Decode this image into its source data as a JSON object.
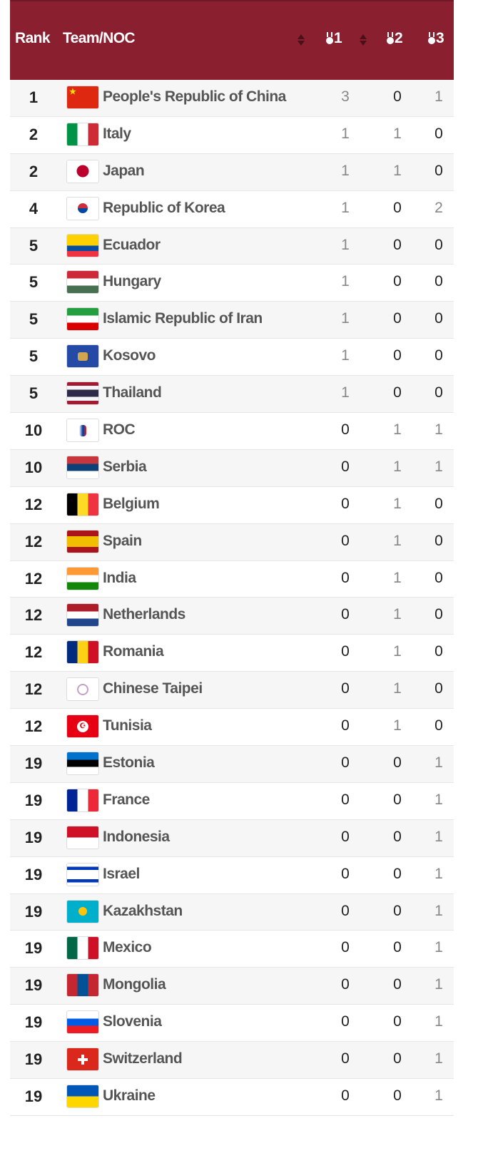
{
  "header": {
    "rank": "Rank",
    "team": "Team/NOC",
    "gold": "1",
    "silver": "2",
    "bronze": "3",
    "bg": "#8a1f30"
  },
  "rows": [
    {
      "rank": "1",
      "name": "People's Republic of China",
      "gold": 3,
      "silver": 0,
      "bronze": 1,
      "flag": {
        "dir": "h",
        "colors": [
          "#de2910"
        ],
        "emblem": "star"
      }
    },
    {
      "rank": "2",
      "name": "Italy",
      "gold": 1,
      "silver": 1,
      "bronze": 0,
      "flag": {
        "dir": "v",
        "colors": [
          "#009246",
          "#ffffff",
          "#ce2b37"
        ]
      }
    },
    {
      "rank": "2",
      "name": "Japan",
      "gold": 1,
      "silver": 1,
      "bronze": 0,
      "flag": {
        "dir": "h",
        "colors": [
          "#ffffff"
        ],
        "emblem": "red-disc"
      }
    },
    {
      "rank": "4",
      "name": "Republic of Korea",
      "gold": 1,
      "silver": 0,
      "bronze": 2,
      "flag": {
        "dir": "h",
        "colors": [
          "#ffffff"
        ],
        "emblem": "taegeuk"
      }
    },
    {
      "rank": "5",
      "name": "Ecuador",
      "gold": 1,
      "silver": 0,
      "bronze": 0,
      "flag": {
        "dir": "h",
        "colors": [
          "#ffd100",
          "#ffd100",
          "#034ea2",
          "#ef3340"
        ]
      }
    },
    {
      "rank": "5",
      "name": "Hungary",
      "gold": 1,
      "silver": 0,
      "bronze": 0,
      "flag": {
        "dir": "h",
        "colors": [
          "#ce2939",
          "#ffffff",
          "#477050"
        ]
      }
    },
    {
      "rank": "5",
      "name": "Islamic Republic of Iran",
      "gold": 1,
      "silver": 0,
      "bronze": 0,
      "flag": {
        "dir": "h",
        "colors": [
          "#239f40",
          "#ffffff",
          "#da0000"
        ]
      }
    },
    {
      "rank": "5",
      "name": "Kosovo",
      "gold": 1,
      "silver": 0,
      "bronze": 0,
      "flag": {
        "dir": "h",
        "colors": [
          "#244aa5"
        ],
        "emblem": "map"
      }
    },
    {
      "rank": "5",
      "name": "Thailand",
      "gold": 1,
      "silver": 0,
      "bronze": 0,
      "flag": {
        "dir": "h",
        "colors": [
          "#a51931",
          "#f4f5f8",
          "#2d2a4a",
          "#2d2a4a",
          "#f4f5f8",
          "#a51931"
        ]
      }
    },
    {
      "rank": "10",
      "name": "ROC",
      "gold": 0,
      "silver": 1,
      "bronze": 1,
      "flag": {
        "dir": "h",
        "colors": [
          "#ffffff"
        ],
        "emblem": "roc"
      }
    },
    {
      "rank": "10",
      "name": "Serbia",
      "gold": 0,
      "silver": 1,
      "bronze": 1,
      "flag": {
        "dir": "h",
        "colors": [
          "#c6363c",
          "#0c4076",
          "#ffffff"
        ]
      }
    },
    {
      "rank": "12",
      "name": "Belgium",
      "gold": 0,
      "silver": 1,
      "bronze": 0,
      "flag": {
        "dir": "v",
        "colors": [
          "#000000",
          "#fdda24",
          "#ef3340"
        ]
      }
    },
    {
      "rank": "12",
      "name": "Spain",
      "gold": 0,
      "silver": 1,
      "bronze": 0,
      "flag": {
        "dir": "h",
        "colors": [
          "#aa151b",
          "#f1bf00",
          "#f1bf00",
          "#aa151b"
        ]
      }
    },
    {
      "rank": "12",
      "name": "India",
      "gold": 0,
      "silver": 1,
      "bronze": 0,
      "flag": {
        "dir": "h",
        "colors": [
          "#ff9933",
          "#ffffff",
          "#138808"
        ]
      }
    },
    {
      "rank": "12",
      "name": "Netherlands",
      "gold": 0,
      "silver": 1,
      "bronze": 0,
      "flag": {
        "dir": "h",
        "colors": [
          "#ae1c28",
          "#ffffff",
          "#21468b"
        ]
      }
    },
    {
      "rank": "12",
      "name": "Romania",
      "gold": 0,
      "silver": 1,
      "bronze": 0,
      "flag": {
        "dir": "v",
        "colors": [
          "#002b7f",
          "#fcd116",
          "#ce1126"
        ]
      }
    },
    {
      "rank": "12",
      "name": "Chinese Taipei",
      "gold": 0,
      "silver": 1,
      "bronze": 0,
      "flag": {
        "dir": "h",
        "colors": [
          "#ffffff"
        ],
        "emblem": "tpe"
      }
    },
    {
      "rank": "12",
      "name": "Tunisia",
      "gold": 0,
      "silver": 1,
      "bronze": 0,
      "flag": {
        "dir": "h",
        "colors": [
          "#e70013"
        ],
        "emblem": "white-disc"
      }
    },
    {
      "rank": "19",
      "name": "Estonia",
      "gold": 0,
      "silver": 0,
      "bronze": 1,
      "flag": {
        "dir": "h",
        "colors": [
          "#0072ce",
          "#000000",
          "#ffffff"
        ]
      }
    },
    {
      "rank": "19",
      "name": "France",
      "gold": 0,
      "silver": 0,
      "bronze": 1,
      "flag": {
        "dir": "v",
        "colors": [
          "#002395",
          "#ffffff",
          "#ed2939"
        ]
      }
    },
    {
      "rank": "19",
      "name": "Indonesia",
      "gold": 0,
      "silver": 0,
      "bronze": 1,
      "flag": {
        "dir": "h",
        "colors": [
          "#ce1126",
          "#ffffff"
        ]
      }
    },
    {
      "rank": "19",
      "name": "Israel",
      "gold": 0,
      "silver": 0,
      "bronze": 1,
      "flag": {
        "dir": "h",
        "colors": [
          "#ffffff",
          "#0038b8",
          "#ffffff",
          "#ffffff",
          "#ffffff",
          "#0038b8",
          "#ffffff"
        ]
      }
    },
    {
      "rank": "19",
      "name": "Kazakhstan",
      "gold": 0,
      "silver": 0,
      "bronze": 1,
      "flag": {
        "dir": "h",
        "colors": [
          "#00afca"
        ],
        "emblem": "sun"
      }
    },
    {
      "rank": "19",
      "name": "Mexico",
      "gold": 0,
      "silver": 0,
      "bronze": 1,
      "flag": {
        "dir": "v",
        "colors": [
          "#006847",
          "#ffffff",
          "#ce1126"
        ]
      }
    },
    {
      "rank": "19",
      "name": "Mongolia",
      "gold": 0,
      "silver": 0,
      "bronze": 1,
      "flag": {
        "dir": "v",
        "colors": [
          "#c4272f",
          "#015197",
          "#c4272f"
        ]
      }
    },
    {
      "rank": "19",
      "name": "Slovenia",
      "gold": 0,
      "silver": 0,
      "bronze": 1,
      "flag": {
        "dir": "h",
        "colors": [
          "#ffffff",
          "#005ce5",
          "#ed1c24"
        ]
      }
    },
    {
      "rank": "19",
      "name": "Switzerland",
      "gold": 0,
      "silver": 0,
      "bronze": 1,
      "flag": {
        "dir": "h",
        "colors": [
          "#da291c"
        ],
        "emblem": "cross"
      }
    },
    {
      "rank": "19",
      "name": "Ukraine",
      "gold": 0,
      "silver": 0,
      "bronze": 1,
      "flag": {
        "dir": "h",
        "colors": [
          "#0057b7",
          "#ffd700"
        ]
      }
    }
  ]
}
